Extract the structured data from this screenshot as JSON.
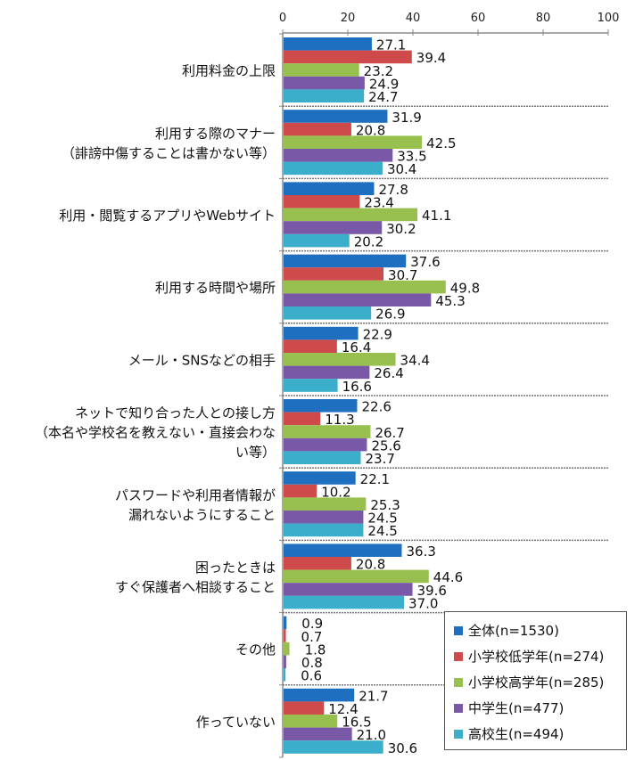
{
  "chart_data": {
    "type": "bar",
    "orientation": "horizontal",
    "title": "",
    "xlabel": "",
    "ylabel": "",
    "xlim": [
      0,
      100
    ],
    "x_ticks": [
      0,
      20,
      40,
      60,
      80,
      100
    ],
    "grid": false,
    "legend_position": "bottom-right",
    "categories": [
      [
        "利用料金の上限"
      ],
      [
        "利用する際のマナー",
        "（誹謗中傷することは書かない等）"
      ],
      [
        "利用・閲覧するアプリやWebサイト"
      ],
      [
        "利用する時間や場所"
      ],
      [
        "メール・SNSなどの相手"
      ],
      [
        "ネットで知り合った人との接し方",
        "（本名や学校名を教えない・直接会わな",
        "い等）"
      ],
      [
        "パスワードや利用者情報が",
        "漏れないようにすること"
      ],
      [
        "困ったときは",
        "すぐ保護者へ相談すること"
      ],
      [
        "その他"
      ],
      [
        "作っていない"
      ]
    ],
    "series": [
      {
        "name": "全体(n=1530)",
        "color": "#1f6fc0",
        "values": [
          27.1,
          31.9,
          27.8,
          37.6,
          22.9,
          22.6,
          22.1,
          36.3,
          0.9,
          21.7
        ]
      },
      {
        "name": "小学校低学年(n=274)",
        "color": "#cf4b4b",
        "values": [
          39.4,
          20.8,
          23.4,
          30.7,
          16.4,
          11.3,
          10.2,
          20.8,
          0.7,
          12.4
        ]
      },
      {
        "name": "小学校高学年(n=285)",
        "color": "#98c04e",
        "values": [
          23.2,
          42.5,
          41.1,
          49.8,
          34.4,
          26.7,
          25.3,
          44.6,
          1.8,
          16.5
        ]
      },
      {
        "name": "中学生(n=477)",
        "color": "#7a58a8",
        "values": [
          24.9,
          33.5,
          30.2,
          45.3,
          26.4,
          25.6,
          24.5,
          39.6,
          0.8,
          21.0
        ]
      },
      {
        "name": "高校生(n=494)",
        "color": "#3aaecb",
        "values": [
          24.7,
          30.4,
          20.2,
          26.9,
          16.6,
          23.7,
          24.5,
          37.0,
          0.6,
          30.6
        ]
      }
    ]
  }
}
